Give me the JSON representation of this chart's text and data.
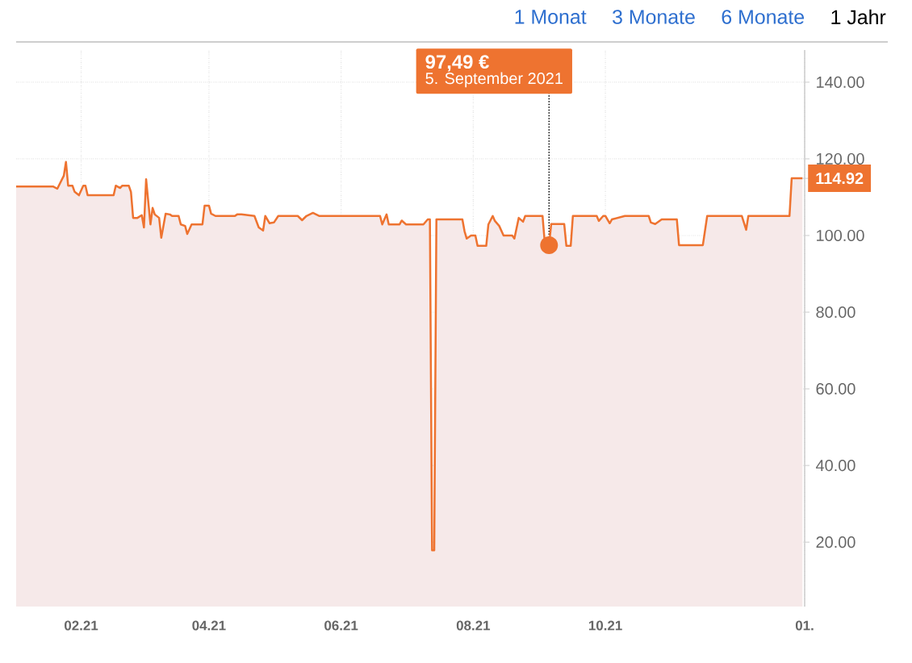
{
  "chart_data": {
    "type": "area",
    "x": [
      "2021-01-02",
      "2021-01-19",
      "2021-01-21",
      "2021-01-24",
      "2021-01-25",
      "2021-01-26",
      "2021-01-28",
      "2021-01-29",
      "2021-01-31",
      "2021-02-02",
      "2021-02-03",
      "2021-02-04",
      "2021-02-16",
      "2021-02-17",
      "2021-02-19",
      "2021-02-20",
      "2021-02-23",
      "2021-02-24",
      "2021-02-25",
      "2021-02-27",
      "2021-03-01",
      "2021-03-02",
      "2021-03-03",
      "2021-03-05",
      "2021-03-06",
      "2021-03-07",
      "2021-03-09",
      "2021-03-10",
      "2021-03-12",
      "2021-03-14",
      "2021-03-15",
      "2021-03-18",
      "2021-03-19",
      "2021-03-21",
      "2021-03-22",
      "2021-03-24",
      "2021-03-25",
      "2021-03-29",
      "2021-03-30",
      "2021-04-01",
      "2021-04-02",
      "2021-04-04",
      "2021-04-13",
      "2021-04-14",
      "2021-04-16",
      "2021-04-22",
      "2021-04-24",
      "2021-04-26",
      "2021-04-27",
      "2021-04-29",
      "2021-05-01",
      "2021-05-03",
      "2021-05-12",
      "2021-05-14",
      "2021-05-16",
      "2021-05-19",
      "2021-05-22",
      "2021-06-19",
      "2021-06-20",
      "2021-06-22",
      "2021-06-23",
      "2021-06-28",
      "2021-06-29",
      "2021-07-01",
      "2021-07-09",
      "2021-07-11",
      "2021-07-12",
      "2021-07-13",
      "2021-07-14",
      "2021-07-15",
      "2021-07-27",
      "2021-07-28",
      "2021-07-29",
      "2021-07-31",
      "2021-08-02",
      "2021-08-03",
      "2021-08-07",
      "2021-08-08",
      "2021-08-10",
      "2021-08-11",
      "2021-08-13",
      "2021-08-15",
      "2021-08-19",
      "2021-08-20",
      "2021-08-22",
      "2021-08-24",
      "2021-08-25",
      "2021-09-02",
      "2021-09-03",
      "2021-09-05",
      "2021-09-06",
      "2021-09-12",
      "2021-09-13",
      "2021-09-15",
      "2021-09-16",
      "2021-09-27",
      "2021-09-28",
      "2021-09-30",
      "2021-10-01",
      "2021-10-03",
      "2021-10-04",
      "2021-10-10",
      "2021-10-21",
      "2021-10-22",
      "2021-10-24",
      "2021-10-27",
      "2021-11-03",
      "2021-11-04",
      "2021-11-15",
      "2021-11-17",
      "2021-12-03",
      "2021-12-05",
      "2021-12-06",
      "2021-12-25",
      "2021-12-26",
      "2021-12-31"
    ],
    "series": [
      {
        "color": "#ee7330",
        "values": [
          112.8,
          112.8,
          112.2,
          115.6,
          119.2,
          113,
          113,
          111.4,
          110.5,
          113,
          113,
          110.5,
          110.5,
          113,
          112.4,
          113,
          113,
          111.4,
          104.6,
          104.6,
          105.3,
          102.1,
          114.7,
          102.9,
          107.2,
          105.5,
          104.6,
          99.4,
          105.7,
          105.5,
          105.1,
          105.1,
          102.9,
          102.5,
          100.4,
          102.9,
          102.9,
          102.9,
          107.8,
          107.8,
          105.7,
          105.1,
          105.1,
          105.5,
          105.5,
          105.1,
          102.1,
          101.3,
          105.1,
          103.2,
          103.4,
          105.1,
          105.1,
          104.0,
          105.1,
          105.9,
          105.1,
          105.1,
          102.9,
          105.5,
          102.9,
          102.9,
          103.9,
          102.9,
          102.9,
          104.2,
          104.2,
          17.9,
          17.9,
          104.2,
          104.2,
          101.1,
          99.2,
          100,
          100,
          97.3,
          97.3,
          102.9,
          105.1,
          103.8,
          102.5,
          100,
          100,
          99.2,
          104.6,
          103.6,
          105.1,
          105.1,
          98.3,
          97.49,
          103,
          103,
          97.3,
          97.3,
          105.1,
          105.1,
          103.8,
          105.1,
          105.1,
          103.2,
          104.2,
          105.1,
          105.1,
          103.4,
          103,
          104.2,
          104.2,
          97.5,
          97.5,
          105.1,
          105.1,
          101.5,
          105.1,
          105.1,
          114.92,
          114.92
        ]
      }
    ],
    "xlim": [
      "2021-01-02",
      "2022-01-01"
    ],
    "xticks": [
      {
        "value": "2021-02-01",
        "label": "02.21"
      },
      {
        "value": "2021-04-01",
        "label": "04.21"
      },
      {
        "value": "2021-06-01",
        "label": "06.21"
      },
      {
        "value": "2021-08-01",
        "label": "08.21"
      },
      {
        "value": "2021-10-01",
        "label": "10.21"
      },
      {
        "value": "2022-01-01",
        "label": "01."
      }
    ],
    "ylim": [
      3.2,
      148.4
    ],
    "yticks": [
      {
        "value": 20,
        "label": "20.00"
      },
      {
        "value": 40,
        "label": "40.00"
      },
      {
        "value": 60,
        "label": "60.00"
      },
      {
        "value": 80,
        "label": "80.00"
      },
      {
        "value": 100,
        "label": "100.00"
      },
      {
        "value": 120,
        "label": "120.00"
      },
      {
        "value": 140,
        "label": "140.00"
      }
    ],
    "grid": true,
    "ref_lines": [
      {
        "axis": "x",
        "value": "2021-09-05",
        "color": "#000000",
        "line_style": "dotted"
      }
    ],
    "annotations": [
      "97,49 €",
      "5. September 2021",
      {
        "text": "114.92",
        "x": "2021-12-31",
        "y": 114.92
      },
      "1 Monat",
      "3 Monate",
      "6 Monate",
      "1 Jahr"
    ]
  }
}
